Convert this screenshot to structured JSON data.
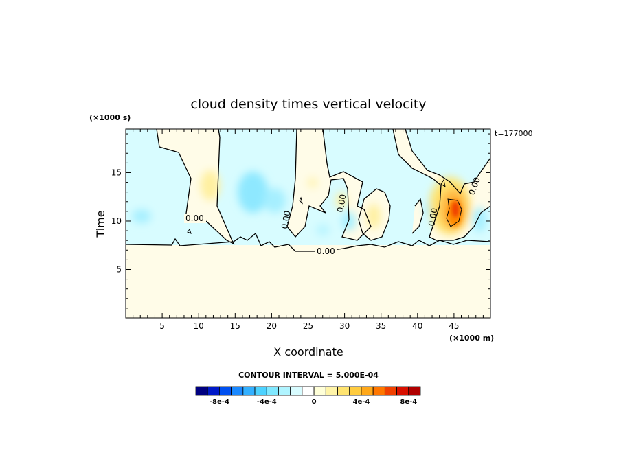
{
  "chart_data": {
    "type": "heatmap",
    "title": "cloud density times vertical velocity",
    "xlabel": "X coordinate",
    "ylabel": "Time",
    "x_unit_label": "(×1000 m)",
    "y_unit_label": "(×1000 s)",
    "time_stamp": "t=177000",
    "xlim": [
      0,
      50
    ],
    "ylim": [
      0,
      19.5
    ],
    "x_ticks": [
      5,
      10,
      15,
      20,
      25,
      30,
      35,
      40,
      45
    ],
    "x_tick_labels": [
      "5",
      "10",
      "15",
      "20",
      "25",
      "30",
      "35",
      "40",
      "45"
    ],
    "y_ticks": [
      5,
      10,
      15
    ],
    "y_tick_labels": [
      "5",
      "10",
      "15"
    ],
    "contour_interval_text": "CONTOUR INTERVAL = 5.000E-04",
    "contour_line_labels": [
      "0.00",
      "0.00",
      "0.00",
      "0.00",
      "0.00",
      "0.00"
    ],
    "colorbar": {
      "tick_labels": [
        "-8e-4",
        "-4e-4",
        "0",
        "4e-4",
        "8e-4"
      ],
      "tick_values": [
        -0.0008,
        -0.0004,
        0,
        0.0004,
        0.0008
      ],
      "colors": [
        "#000080",
        "#0019c8",
        "#0050f0",
        "#1a88ff",
        "#33b0ff",
        "#4dd2ff",
        "#80e8ff",
        "#b0f4ff",
        "#d8fcff",
        "#ffffff",
        "#ffffd8",
        "#fff4a8",
        "#ffe470",
        "#ffcc40",
        "#ffa81a",
        "#ff7700",
        "#f04000",
        "#d81000",
        "#b00000"
      ],
      "levels_min": -0.00095,
      "levels_step": 0.0001
    },
    "series_regions": [
      {
        "kind": "background_low",
        "x": [
          0,
          50
        ],
        "y": [
          0,
          7.8
        ],
        "value": 3e-05
      },
      {
        "kind": "positive_max",
        "x": 45,
        "y": 11.3,
        "value": 0.0009
      },
      {
        "kind": "negative_min",
        "x": 18,
        "y": 12.5,
        "value": -0.0003
      }
    ],
    "grid": false
  }
}
